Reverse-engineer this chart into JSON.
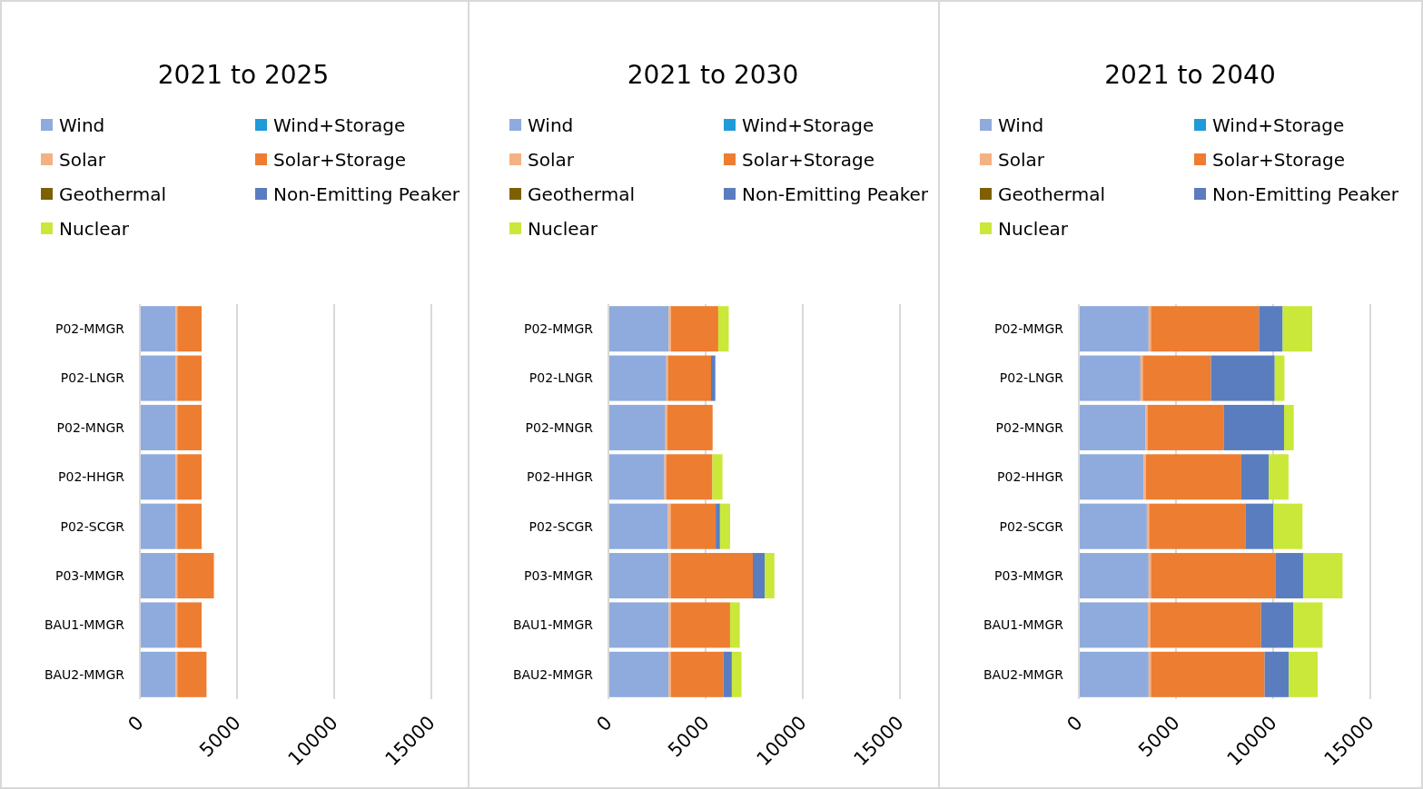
{
  "chart_data": [
    {
      "type": "bar",
      "title": "2021 to 2025",
      "orientation": "horizontal",
      "stacked": true,
      "legend": "top",
      "grid": "x",
      "categories": [
        "P02-MMGR",
        "P02-LNGR",
        "P02-MNGR",
        "P02-HHGR",
        "P02-SCGR",
        "P03-MMGR",
        "BAU1-MMGR",
        "BAU2-MMGR"
      ],
      "xlim": [
        0,
        15000
      ],
      "xticks": [
        0,
        5000,
        10000,
        15000
      ],
      "series": [
        {
          "name": "Wind",
          "color": "#8faadc",
          "values": [
            1850,
            1850,
            1850,
            1850,
            1850,
            1850,
            1850,
            1850
          ]
        },
        {
          "name": "Wind+Storage",
          "color": "#1f9bd7",
          "values": [
            0,
            0,
            0,
            0,
            0,
            0,
            0,
            0
          ]
        },
        {
          "name": "Solar",
          "color": "#f4b183",
          "values": [
            80,
            80,
            80,
            80,
            80,
            80,
            80,
            80
          ]
        },
        {
          "name": "Solar+Storage",
          "color": "#ed7d31",
          "values": [
            1250,
            1250,
            1250,
            1250,
            1250,
            1880,
            1250,
            1500
          ]
        },
        {
          "name": "Geothermal",
          "color": "#7f6000",
          "values": [
            0,
            0,
            0,
            0,
            0,
            0,
            0,
            0
          ]
        },
        {
          "name": "Non-Emitting Peaker",
          "color": "#5a7dbf",
          "values": [
            0,
            0,
            0,
            0,
            0,
            0,
            0,
            0
          ]
        },
        {
          "name": "Nuclear",
          "color": "#c9e83a",
          "values": [
            0,
            0,
            0,
            0,
            0,
            0,
            0,
            0
          ]
        }
      ]
    },
    {
      "type": "bar",
      "title": "2021 to 2030",
      "orientation": "horizontal",
      "stacked": true,
      "legend": "top",
      "grid": "x",
      "categories": [
        "P02-MMGR",
        "P02-LNGR",
        "P02-MNGR",
        "P02-HHGR",
        "P02-SCGR",
        "P03-MMGR",
        "BAU1-MMGR",
        "BAU2-MMGR"
      ],
      "xlim": [
        0,
        15000
      ],
      "xticks": [
        0,
        5000,
        10000,
        15000
      ],
      "series": [
        {
          "name": "Wind",
          "color": "#8faadc",
          "values": [
            3100,
            2980,
            2930,
            2880,
            3060,
            3100,
            3100,
            3100
          ]
        },
        {
          "name": "Wind+Storage",
          "color": "#1f9bd7",
          "values": [
            0,
            0,
            0,
            0,
            0,
            0,
            0,
            0
          ]
        },
        {
          "name": "Solar",
          "color": "#f4b183",
          "values": [
            120,
            80,
            110,
            110,
            140,
            120,
            120,
            120
          ]
        },
        {
          "name": "Solar+Storage",
          "color": "#ed7d31",
          "values": [
            2430,
            2220,
            2320,
            2360,
            2320,
            4210,
            3040,
            2690
          ]
        },
        {
          "name": "Geothermal",
          "color": "#7f6000",
          "values": [
            0,
            0,
            0,
            0,
            0,
            0,
            0,
            0
          ]
        },
        {
          "name": "Non-Emitting Peaker",
          "color": "#5a7dbf",
          "values": [
            0,
            220,
            0,
            0,
            220,
            610,
            0,
            440
          ]
        },
        {
          "name": "Nuclear",
          "color": "#c9e83a",
          "values": [
            540,
            0,
            0,
            520,
            520,
            500,
            500,
            500
          ]
        }
      ]
    },
    {
      "type": "bar",
      "title": "2021 to 2040",
      "orientation": "horizontal",
      "stacked": true,
      "legend": "top",
      "grid": "x",
      "categories": [
        "P02-MMGR",
        "P02-LNGR",
        "P02-MNGR",
        "P02-HHGR",
        "P02-SCGR",
        "P03-MMGR",
        "BAU1-MMGR",
        "BAU2-MMGR"
      ],
      "xlim": [
        0,
        15000
      ],
      "xticks": [
        0,
        5000,
        10000,
        15000
      ],
      "series": [
        {
          "name": "Wind",
          "color": "#8faadc",
          "values": [
            3590,
            3170,
            3420,
            3330,
            3500,
            3590,
            3550,
            3590
          ]
        },
        {
          "name": "Wind+Storage",
          "color": "#1f9bd7",
          "values": [
            0,
            0,
            0,
            0,
            0,
            0,
            0,
            0
          ]
        },
        {
          "name": "Solar",
          "color": "#f4b183",
          "values": [
            120,
            120,
            110,
            120,
            120,
            120,
            120,
            120
          ]
        },
        {
          "name": "Solar+Storage",
          "color": "#ed7d31",
          "values": [
            5560,
            3510,
            3940,
            4910,
            4950,
            6400,
            5710,
            5850
          ]
        },
        {
          "name": "Geothermal",
          "color": "#7f6000",
          "values": [
            0,
            0,
            0,
            0,
            0,
            0,
            0,
            0
          ]
        },
        {
          "name": "Non-Emitting Peaker",
          "color": "#5a7dbf",
          "values": [
            1220,
            3280,
            3090,
            1410,
            1430,
            1430,
            1650,
            1240
          ]
        },
        {
          "name": "Nuclear",
          "color": "#c9e83a",
          "values": [
            1520,
            500,
            500,
            1020,
            1510,
            2030,
            1510,
            1490
          ]
        }
      ]
    }
  ]
}
